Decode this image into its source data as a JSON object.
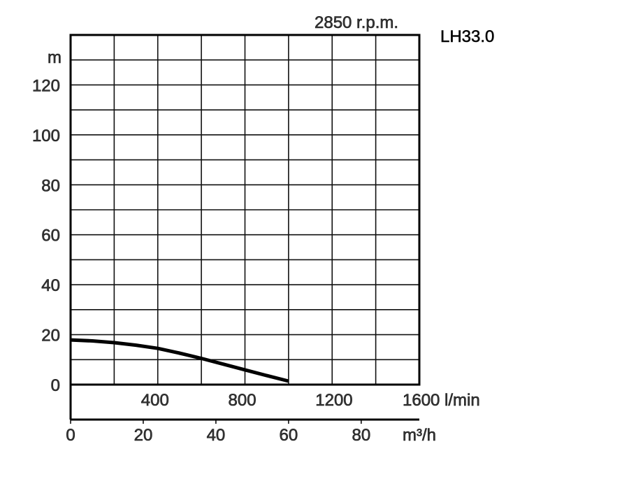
{
  "chart_data": {
    "type": "line",
    "title": "LH33.0",
    "subtitle": "2850 r.p.m.",
    "ylabel": "m",
    "xlabel": "l/min",
    "xlabel_secondary": "m³/h",
    "xlim": [
      0,
      1600
    ],
    "ylim": [
      0,
      140
    ],
    "x_ticks": [
      400,
      800,
      1200,
      1600
    ],
    "x_tick_labels": [
      "400",
      "800",
      "1200",
      "1600 l/min"
    ],
    "x2_ticks": [
      0,
      20,
      40,
      60,
      80
    ],
    "x2_tick_labels": [
      "0",
      "20",
      "40",
      "60",
      "80"
    ],
    "y_ticks": [
      0,
      20,
      40,
      60,
      80,
      100,
      120
    ],
    "y_tick_labels": [
      "0",
      "20",
      "40",
      "60",
      "80",
      "100",
      "120"
    ],
    "grid": true,
    "series": [
      {
        "name": "LH33.0",
        "x": [
          0,
          100,
          200,
          300,
          400,
          500,
          600,
          700,
          800,
          900,
          1000
        ],
        "y": [
          17.9,
          17.5,
          16.8,
          15.8,
          14.5,
          12.6,
          10.5,
          8.2,
          5.9,
          3.6,
          1.4
        ]
      }
    ]
  }
}
